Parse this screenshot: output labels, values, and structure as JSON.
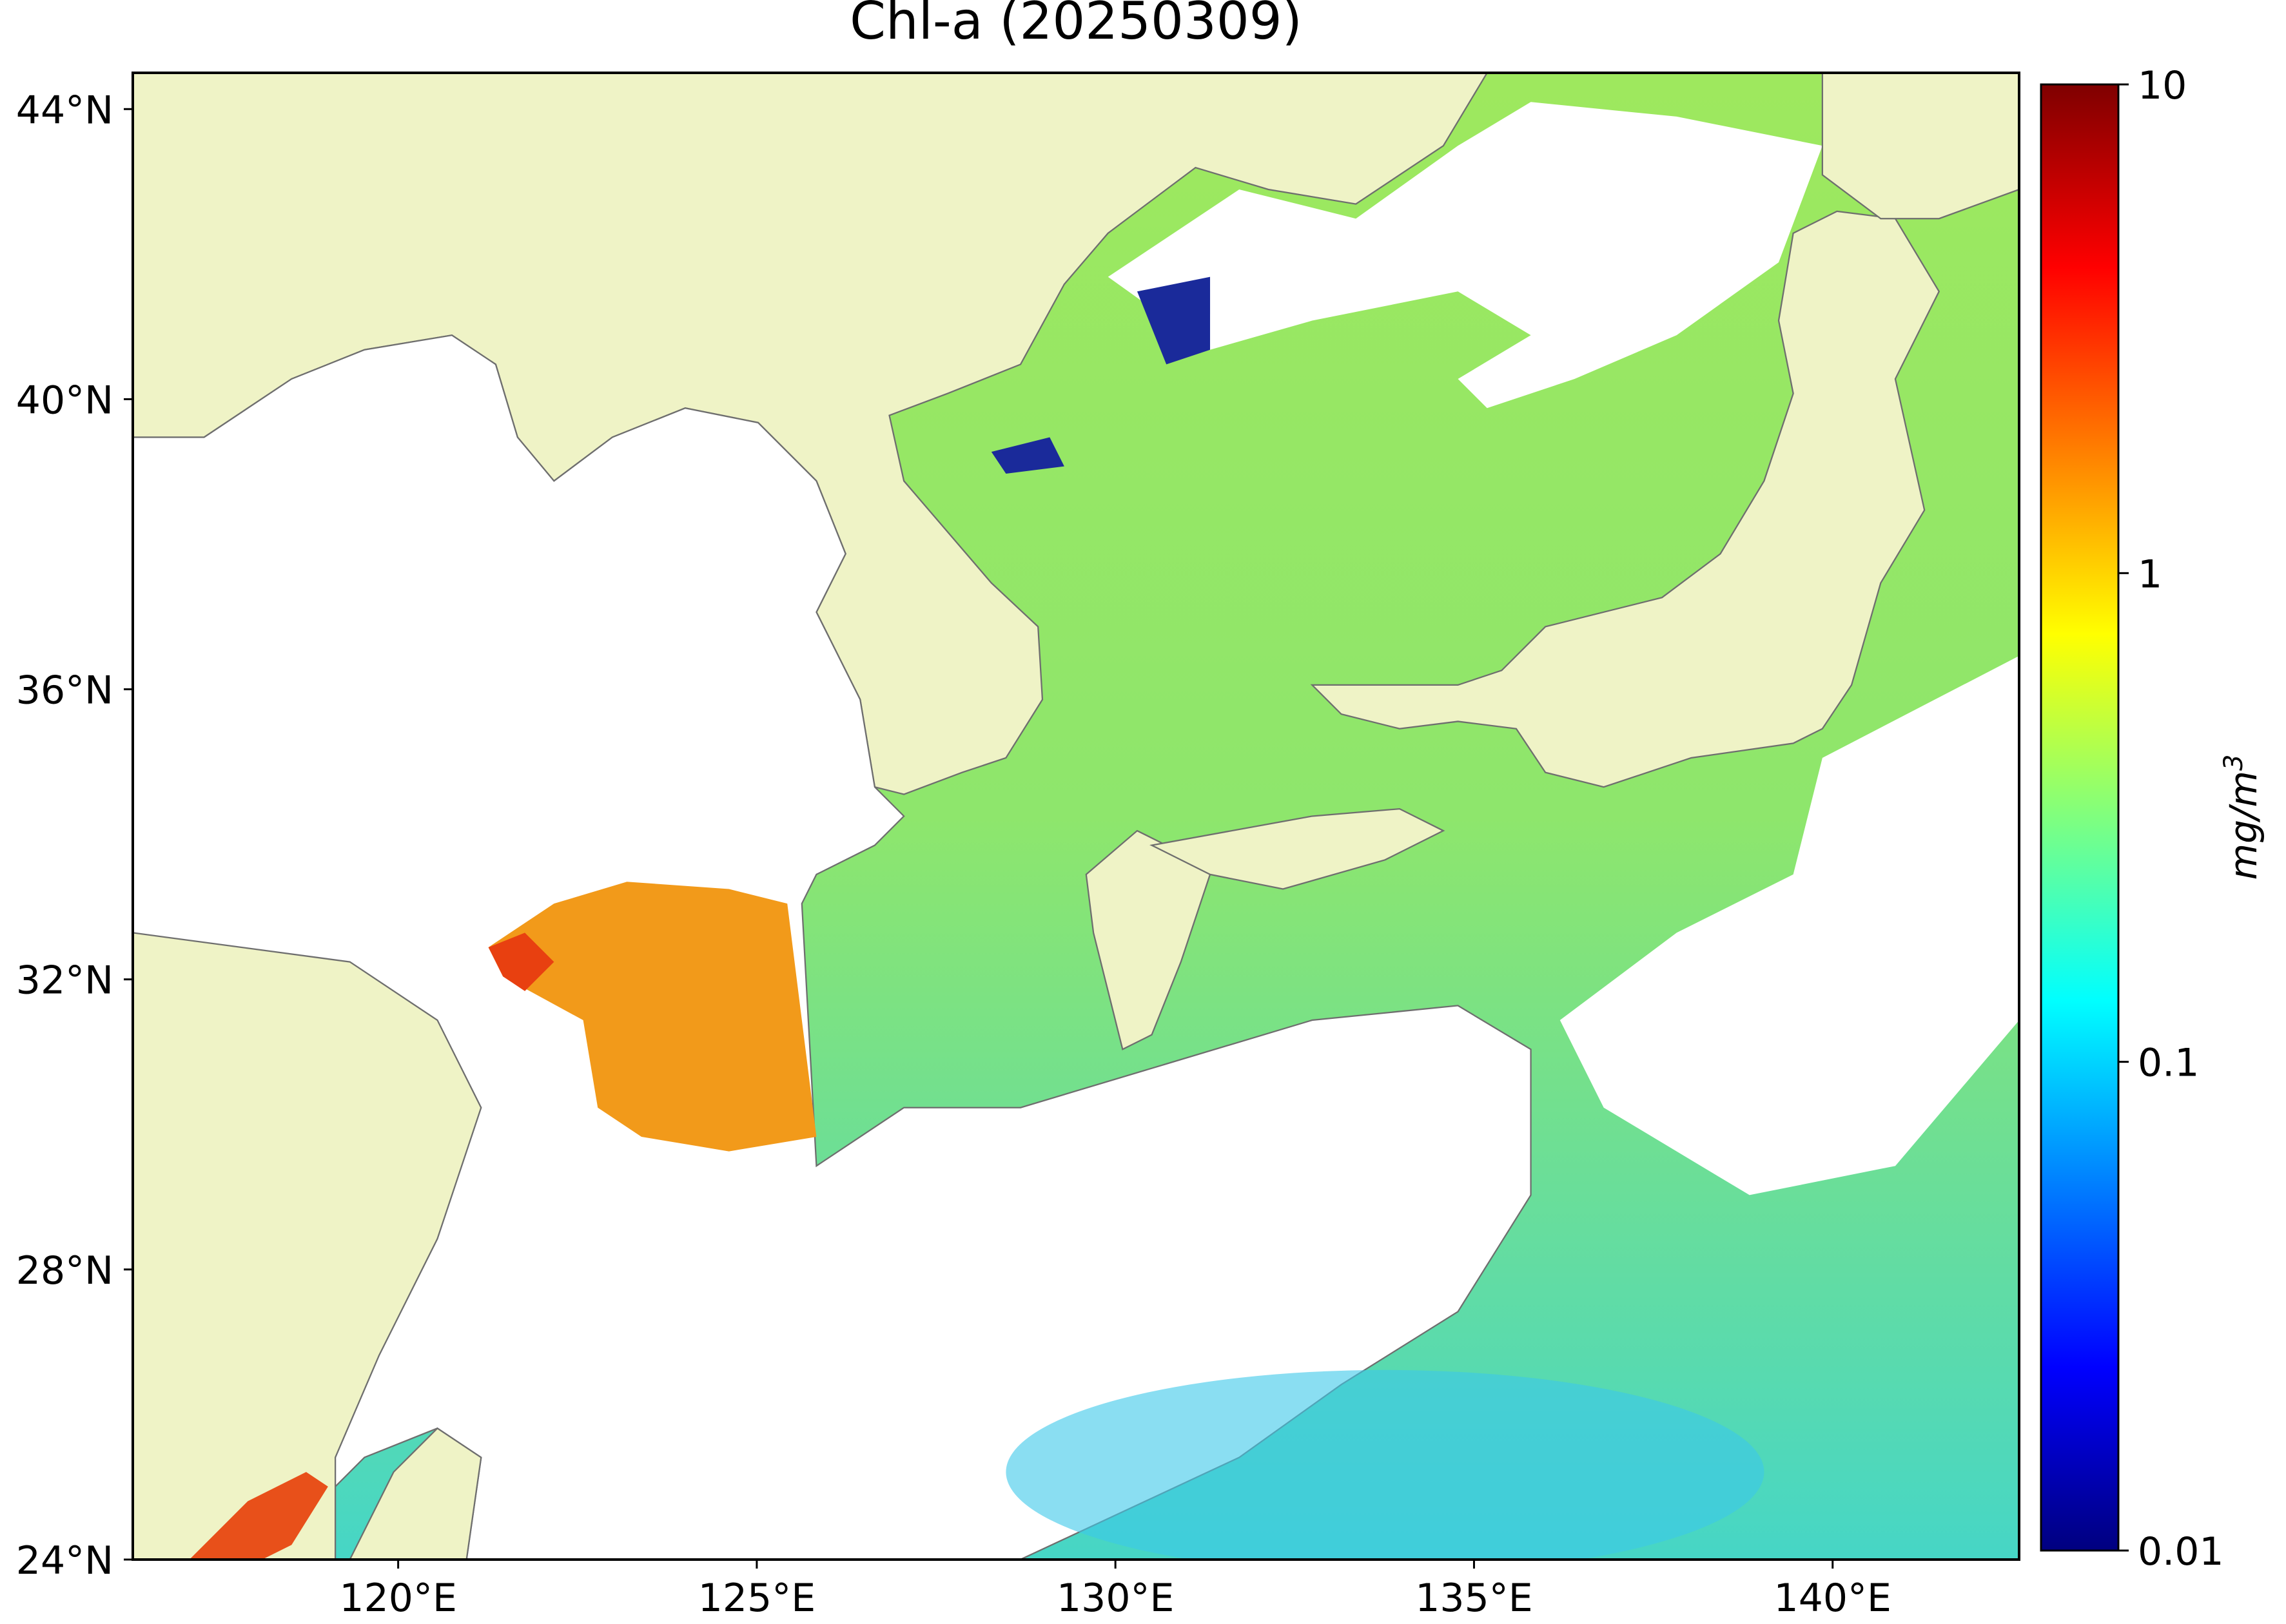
{
  "title": "Chl-a (20250309)",
  "extent": {
    "lon": [
      116.3,
      142.6
    ],
    "lat": [
      24,
      44.5
    ]
  },
  "lon_ticks": [
    {
      "value": 120,
      "label": "120°E"
    },
    {
      "value": 125,
      "label": "125°E"
    },
    {
      "value": 130,
      "label": "130°E"
    },
    {
      "value": 135,
      "label": "135°E"
    },
    {
      "value": 140,
      "label": "140°E"
    }
  ],
  "lat_ticks": [
    {
      "value": 24,
      "label": "24°N"
    },
    {
      "value": 28,
      "label": "28°N"
    },
    {
      "value": 32,
      "label": "32°N"
    },
    {
      "value": 36,
      "label": "36°N"
    },
    {
      "value": 40,
      "label": "40°N"
    },
    {
      "value": 44,
      "label": "44°N"
    }
  ],
  "colorbar": {
    "label": "mg/m",
    "label_sup": "3",
    "scale": "log",
    "lim": [
      0.01,
      10
    ],
    "ticks": [
      0.01,
      0.1,
      1,
      10
    ],
    "colormap": [
      "#00007f",
      "#0000ff",
      "#007fff",
      "#00ffff",
      "#7fff7f",
      "#ffff00",
      "#ff7f00",
      "#ff0000",
      "#7f0000"
    ]
  }
}
